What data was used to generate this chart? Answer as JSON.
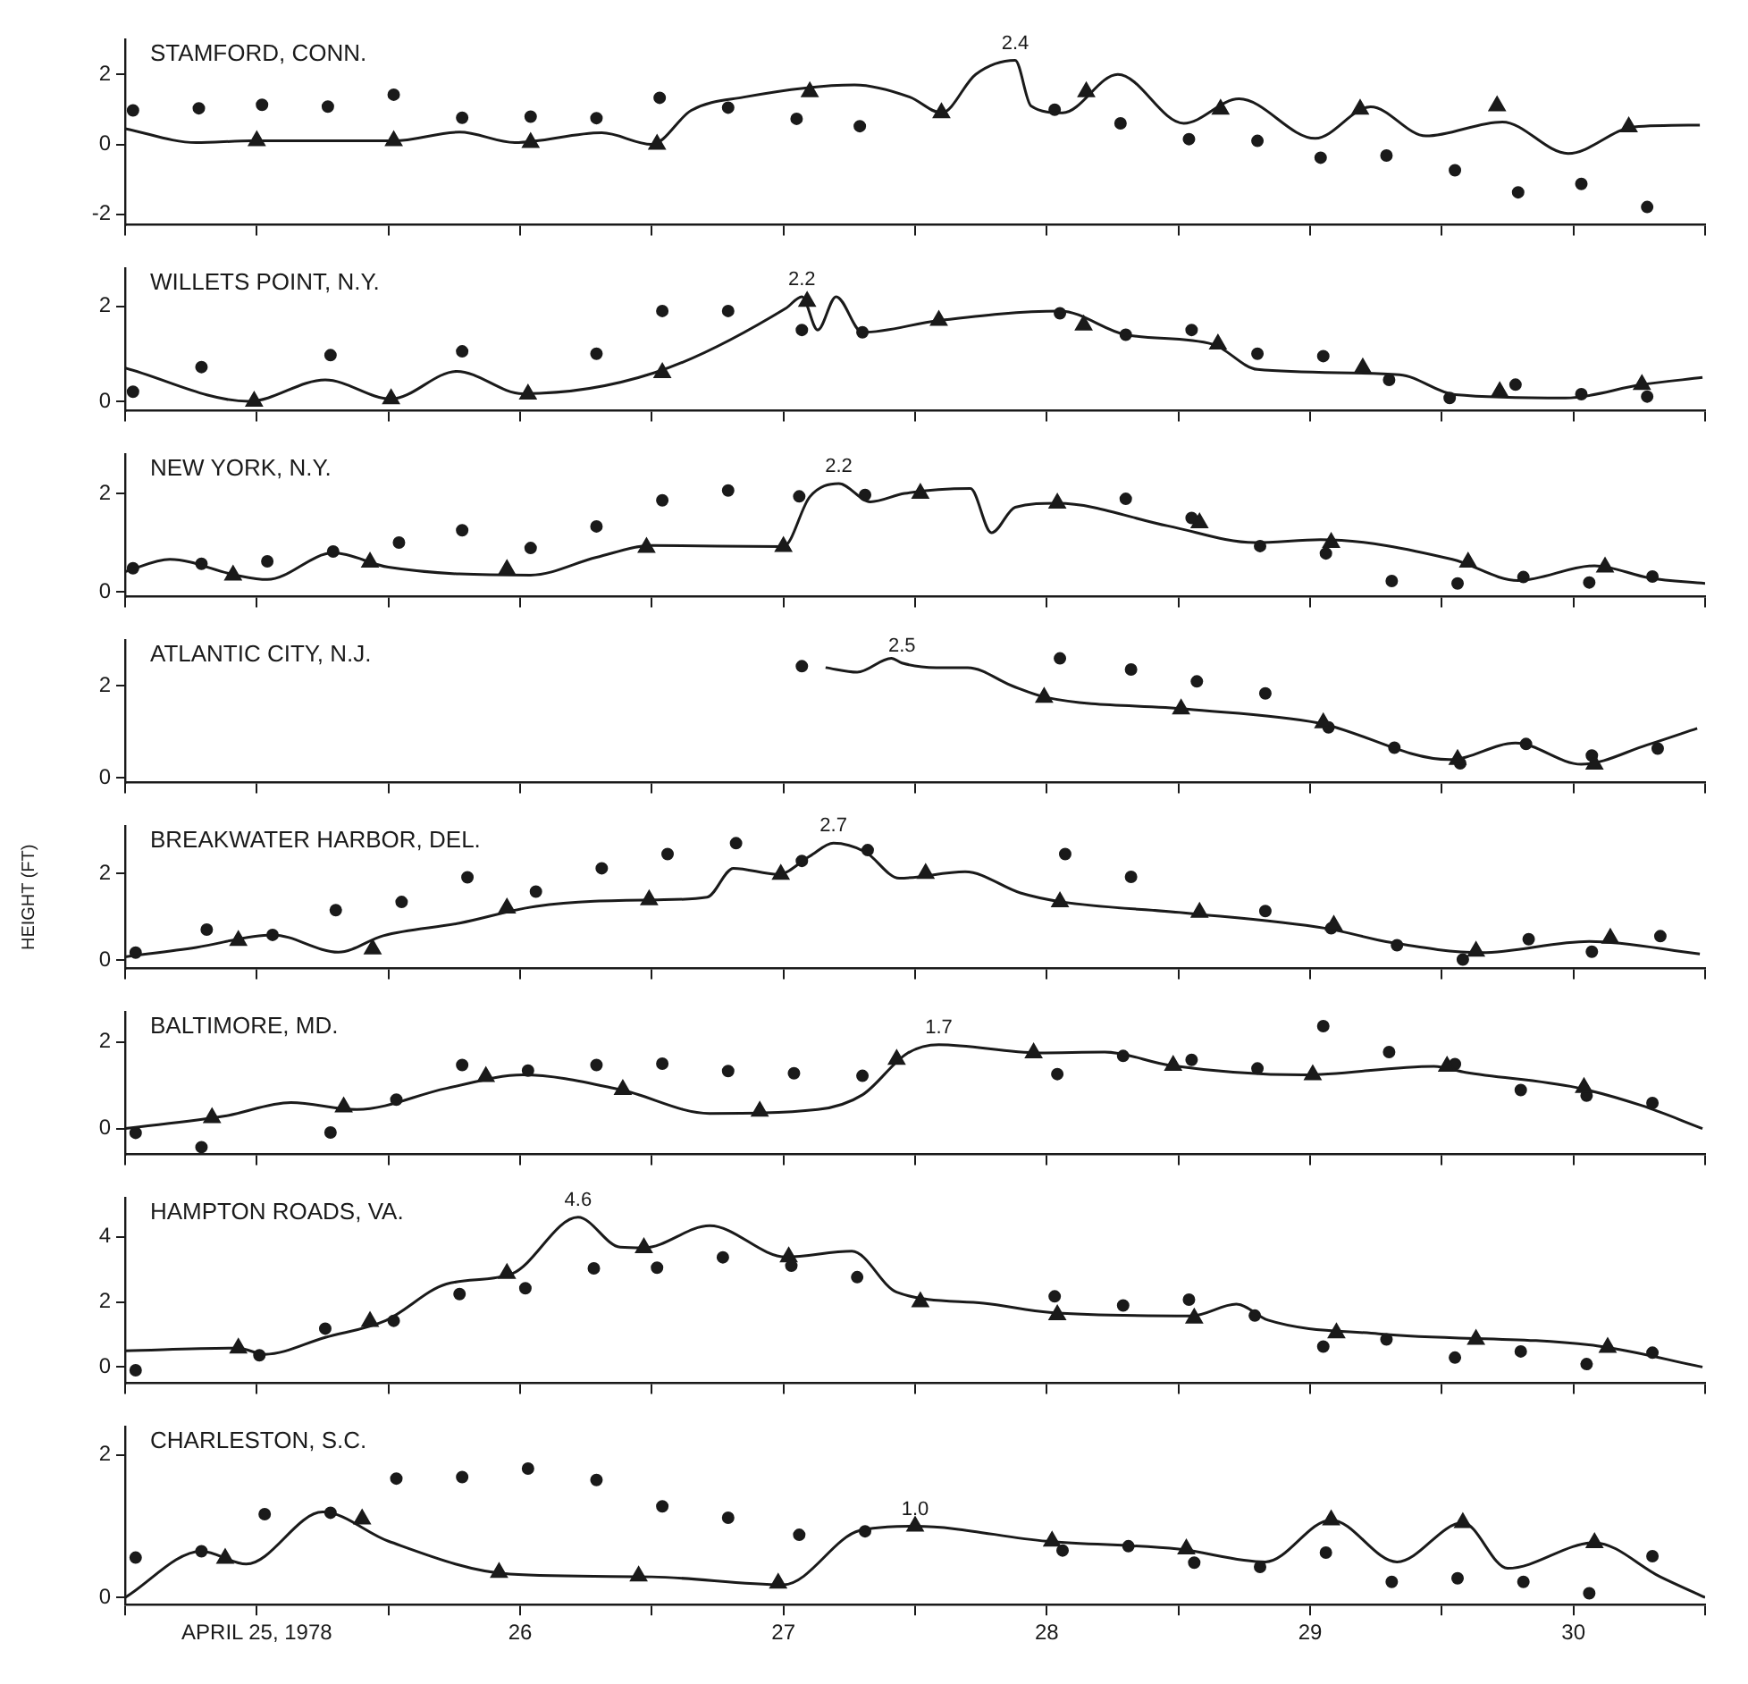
{
  "chart_data": [
    {
      "type": "line",
      "title": "STAMFORD, CONN.",
      "xlim": [
        24.5,
        30.5
      ],
      "xticks": [
        {
          "value": 24.5,
          "label": null
        },
        {
          "value": 25,
          "label": null
        },
        {
          "value": 25.5,
          "label": null
        },
        {
          "value": 26,
          "label": null
        },
        {
          "value": 26.5,
          "label": null
        },
        {
          "value": 27,
          "label": null
        },
        {
          "value": 27.5,
          "label": null
        },
        {
          "value": 28,
          "label": null
        },
        {
          "value": 28.5,
          "label": null
        },
        {
          "value": 29,
          "label": null
        },
        {
          "value": 29.5,
          "label": null
        },
        {
          "value": 30,
          "label": null
        },
        {
          "value": 30.5,
          "label": null
        }
      ],
      "ylim": [
        -2.3,
        3
      ],
      "yticks": [
        -2,
        0,
        2
      ],
      "tick_labels": "y",
      "grid": false,
      "legend": false,
      "annotations": [
        {
          "text": "2.4",
          "x": 27.88,
          "y": 2.4
        }
      ],
      "series": [
        {
          "type": "line",
          "marker": "none",
          "color": "#1a1a1a",
          "x": [
            24.5,
            24.77,
            24.98,
            25.52,
            25.77,
            25.98,
            26.31,
            26.5,
            26.65,
            26.85,
            27.27,
            27.48,
            27.6,
            27.73,
            27.88,
            27.94,
            28.06,
            28.27,
            28.52,
            28.73,
            29.02,
            29.23,
            29.44,
            29.73,
            29.98,
            30.23,
            30.48
          ],
          "values": [
            0.45,
            0.05,
            0.1,
            0.1,
            0.35,
            0.05,
            0.33,
            0.0,
            0.97,
            1.35,
            1.7,
            1.35,
            0.9,
            2.0,
            2.4,
            1.1,
            0.9,
            2.0,
            0.6,
            1.3,
            0.17,
            1.07,
            0.24,
            0.64,
            -0.26,
            0.5,
            0.55
          ]
        },
        {
          "type": "scatter",
          "marker": "circle",
          "color": "#1a1a1a",
          "x": [
            24.53,
            24.78,
            25.02,
            25.27,
            25.52,
            25.78,
            26.04,
            26.29,
            26.53,
            26.79,
            27.05,
            27.29,
            28.03,
            28.28,
            28.54,
            28.8,
            29.04,
            29.29,
            29.55,
            29.79,
            30.03,
            30.28
          ],
          "values": [
            0.97,
            1.03,
            1.13,
            1.08,
            1.42,
            0.76,
            0.79,
            0.75,
            1.33,
            1.05,
            0.73,
            0.52,
            0.99,
            0.6,
            0.15,
            0.1,
            -0.38,
            -0.32,
            -0.74,
            -1.37,
            -1.13,
            -1.79
          ]
        },
        {
          "type": "scatter",
          "marker": "triangle",
          "color": "#1a1a1a",
          "x": [
            25.0,
            25.52,
            26.04,
            26.52,
            27.1,
            27.6,
            28.15,
            28.66,
            29.19,
            29.71,
            30.21
          ],
          "values": [
            0.1,
            0.1,
            0.05,
            0.0,
            1.5,
            0.9,
            1.5,
            1.0,
            1.0,
            1.1,
            0.5
          ]
        }
      ]
    },
    {
      "type": "line",
      "title": "WILLETS POINT, N.Y.",
      "xlim": [
        24.5,
        30.5
      ],
      "xticks": [
        {
          "value": 24.5,
          "label": null
        },
        {
          "value": 25,
          "label": null
        },
        {
          "value": 25.5,
          "label": null
        },
        {
          "value": 26,
          "label": null
        },
        {
          "value": 26.5,
          "label": null
        },
        {
          "value": 27,
          "label": null
        },
        {
          "value": 27.5,
          "label": null
        },
        {
          "value": 28,
          "label": null
        },
        {
          "value": 28.5,
          "label": null
        },
        {
          "value": 29,
          "label": null
        },
        {
          "value": 29.5,
          "label": null
        },
        {
          "value": 30,
          "label": null
        },
        {
          "value": 30.5,
          "label": null
        }
      ],
      "ylim": [
        -0.2,
        2.8
      ],
      "yticks": [
        0,
        2
      ],
      "tick_labels": "y",
      "grid": false,
      "legend": false,
      "annotations": [
        {
          "text": "2.2",
          "x": 27.07,
          "y": 2.2
        }
      ],
      "series": [
        {
          "type": "line",
          "marker": "none",
          "color": "#1a1a1a",
          "x": [
            24.5,
            24.97,
            25.26,
            25.51,
            25.76,
            26.01,
            26.51,
            27.01,
            27.07,
            27.13,
            27.2,
            27.3,
            27.59,
            28.05,
            28.3,
            28.63,
            28.8,
            29.34,
            29.55,
            29.97,
            30.26,
            30.49
          ],
          "values": [
            0.7,
            0.0,
            0.45,
            0.05,
            0.63,
            0.16,
            0.6,
            1.96,
            2.2,
            1.5,
            2.2,
            1.45,
            1.7,
            1.9,
            1.4,
            1.2,
            0.67,
            0.56,
            0.14,
            0.07,
            0.35,
            0.5
          ]
        },
        {
          "type": "scatter",
          "marker": "circle",
          "color": "#1a1a1a",
          "x": [
            24.53,
            24.79,
            25.28,
            25.78,
            26.29,
            26.54,
            26.79,
            27.07,
            27.3,
            28.05,
            28.3,
            28.55,
            28.8,
            29.05,
            29.3,
            29.53,
            29.78,
            30.03,
            30.28
          ],
          "values": [
            0.2,
            0.72,
            0.97,
            1.05,
            1.0,
            1.9,
            1.9,
            1.5,
            1.45,
            1.85,
            1.4,
            1.5,
            1.0,
            0.95,
            0.45,
            0.07,
            0.35,
            0.15,
            0.1
          ]
        },
        {
          "type": "scatter",
          "marker": "triangle",
          "color": "#1a1a1a",
          "x": [
            24.99,
            25.51,
            26.03,
            26.54,
            27.09,
            27.59,
            28.14,
            28.65,
            29.2,
            29.72,
            30.26
          ],
          "values": [
            0.0,
            0.05,
            0.15,
            0.6,
            2.1,
            1.7,
            1.6,
            1.2,
            0.7,
            0.2,
            0.35
          ]
        }
      ]
    },
    {
      "type": "line",
      "title": "NEW YORK, N.Y.",
      "xlim": [
        24.5,
        30.5
      ],
      "xticks": [
        {
          "value": 24.5,
          "label": null
        },
        {
          "value": 25,
          "label": null
        },
        {
          "value": 25.5,
          "label": null
        },
        {
          "value": 26,
          "label": null
        },
        {
          "value": 26.5,
          "label": null
        },
        {
          "value": 27,
          "label": null
        },
        {
          "value": 27.5,
          "label": null
        },
        {
          "value": 28,
          "label": null
        },
        {
          "value": 28.5,
          "label": null
        },
        {
          "value": 29,
          "label": null
        },
        {
          "value": 29.5,
          "label": null
        },
        {
          "value": 30,
          "label": null
        },
        {
          "value": 30.5,
          "label": null
        }
      ],
      "ylim": [
        -0.1,
        2.8
      ],
      "yticks": [
        0,
        2
      ],
      "tick_labels": "y",
      "grid": false,
      "legend": false,
      "annotations": [
        {
          "text": "2.2",
          "x": 27.21,
          "y": 2.2
        }
      ],
      "series": [
        {
          "type": "line",
          "marker": "none",
          "color": "#1a1a1a",
          "x": [
            24.5,
            24.67,
            24.92,
            25.04,
            25.29,
            25.5,
            26.04,
            26.29,
            26.5,
            27.0,
            27.1,
            27.21,
            27.33,
            27.46,
            27.71,
            27.79,
            27.88,
            28.04,
            28.46,
            28.79,
            29.04,
            29.54,
            29.79,
            30.08,
            30.29,
            30.5
          ],
          "values": [
            0.41,
            0.66,
            0.34,
            0.25,
            0.79,
            0.5,
            0.34,
            0.7,
            0.94,
            0.92,
            1.93,
            2.2,
            1.83,
            2.0,
            2.1,
            1.2,
            1.72,
            1.8,
            1.34,
            1.0,
            1.06,
            0.66,
            0.23,
            0.53,
            0.28,
            0.17
          ]
        },
        {
          "type": "scatter",
          "marker": "circle",
          "color": "#1a1a1a",
          "x": [
            24.53,
            24.79,
            25.04,
            25.29,
            25.54,
            25.78,
            26.04,
            26.29,
            26.54,
            26.79,
            27.06,
            27.31,
            28.3,
            28.55,
            28.81,
            29.06,
            29.31,
            29.56,
            29.81,
            30.06,
            30.3
          ],
          "values": [
            0.48,
            0.57,
            0.62,
            0.82,
            1.0,
            1.25,
            0.89,
            1.33,
            1.86,
            2.06,
            1.94,
            1.97,
            1.89,
            1.5,
            0.93,
            0.78,
            0.22,
            0.17,
            0.3,
            0.19,
            0.31
          ]
        },
        {
          "type": "scatter",
          "marker": "triangle",
          "color": "#1a1a1a",
          "x": [
            24.91,
            25.43,
            25.95,
            26.48,
            27.0,
            27.52,
            28.04,
            28.58,
            29.08,
            29.6,
            30.12
          ],
          "values": [
            0.34,
            0.6,
            0.45,
            0.9,
            0.92,
            2.0,
            1.8,
            1.4,
            1.0,
            0.6,
            0.5
          ]
        }
      ]
    },
    {
      "type": "line",
      "title": "ATLANTIC CITY, N.J.",
      "xlim": [
        24.5,
        30.5
      ],
      "xticks": [
        {
          "value": 24.5,
          "label": null
        },
        {
          "value": 25,
          "label": null
        },
        {
          "value": 25.5,
          "label": null
        },
        {
          "value": 26,
          "label": null
        },
        {
          "value": 26.5,
          "label": null
        },
        {
          "value": 27,
          "label": null
        },
        {
          "value": 27.5,
          "label": null
        },
        {
          "value": 28,
          "label": null
        },
        {
          "value": 28.5,
          "label": null
        },
        {
          "value": 29,
          "label": null
        },
        {
          "value": 29.5,
          "label": null
        },
        {
          "value": 30,
          "label": null
        },
        {
          "value": 30.5,
          "label": null
        }
      ],
      "ylim": [
        -0.1,
        3.0
      ],
      "yticks": [
        0,
        2
      ],
      "tick_labels": "y",
      "grid": false,
      "legend": false,
      "annotations": [
        {
          "text": "2.5",
          "x": 27.45,
          "y": 2.5
        }
      ],
      "series": [
        {
          "type": "line",
          "marker": "none",
          "color": "#1a1a1a",
          "x": [
            27.16,
            27.28,
            27.41,
            27.45,
            27.58,
            27.7,
            27.87,
            28.0,
            28.53,
            29.03,
            29.53,
            29.78,
            30.03,
            30.28,
            30.47
          ],
          "values": [
            2.4,
            2.3,
            2.6,
            2.5,
            2.4,
            2.4,
            2.0,
            1.75,
            1.5,
            1.2,
            0.4,
            0.76,
            0.3,
            0.72,
            1.08
          ]
        },
        {
          "type": "scatter",
          "marker": "circle",
          "color": "#1a1a1a",
          "x": [
            27.07,
            28.05,
            28.32,
            28.57,
            28.83,
            29.07,
            29.32,
            29.57,
            29.82,
            30.07,
            30.32
          ],
          "values": [
            2.43,
            2.6,
            2.36,
            2.1,
            1.84,
            1.1,
            0.66,
            0.32,
            0.74,
            0.49,
            0.64
          ]
        },
        {
          "type": "scatter",
          "marker": "triangle",
          "color": "#1a1a1a",
          "x": [
            27.99,
            28.51,
            29.05,
            29.56,
            30.08
          ],
          "values": [
            1.75,
            1.5,
            1.2,
            0.4,
            0.3
          ]
        }
      ]
    },
    {
      "type": "line",
      "title": "BREAKWATER HARBOR, DEL.",
      "ylabel": "HEIGHT (FT)",
      "xlim": [
        24.5,
        30.5
      ],
      "xticks": [
        {
          "value": 24.5,
          "label": null
        },
        {
          "value": 25,
          "label": null
        },
        {
          "value": 25.5,
          "label": null
        },
        {
          "value": 26,
          "label": null
        },
        {
          "value": 26.5,
          "label": null
        },
        {
          "value": 27,
          "label": null
        },
        {
          "value": 27.5,
          "label": null
        },
        {
          "value": 28,
          "label": null
        },
        {
          "value": 28.5,
          "label": null
        },
        {
          "value": 29,
          "label": null
        },
        {
          "value": 29.5,
          "label": null
        },
        {
          "value": 30,
          "label": null
        },
        {
          "value": 30.5,
          "label": null
        }
      ],
      "ylim": [
        -0.2,
        3.1
      ],
      "yticks": [
        0,
        2
      ],
      "tick_labels": "y",
      "grid": false,
      "legend": false,
      "annotations": [
        {
          "text": "2.7",
          "x": 27.19,
          "y": 2.7
        }
      ],
      "series": [
        {
          "type": "line",
          "marker": "none",
          "color": "#1a1a1a",
          "x": [
            24.5,
            24.77,
            25.06,
            25.31,
            25.48,
            25.77,
            26.06,
            26.52,
            26.71,
            26.81,
            26.98,
            27.1,
            27.19,
            27.31,
            27.44,
            27.69,
            27.9,
            28.06,
            28.52,
            29.06,
            29.31,
            29.65,
            30.06,
            30.48
          ],
          "values": [
            0.07,
            0.29,
            0.58,
            0.18,
            0.56,
            0.85,
            1.24,
            1.39,
            1.45,
            2.12,
            1.98,
            2.4,
            2.7,
            2.5,
            1.89,
            2.04,
            1.55,
            1.34,
            1.09,
            0.73,
            0.4,
            0.17,
            0.43,
            0.14
          ]
        },
        {
          "type": "scatter",
          "marker": "circle",
          "color": "#1a1a1a",
          "x": [
            24.54,
            24.81,
            25.06,
            25.3,
            25.55,
            25.8,
            26.06,
            26.31,
            26.56,
            26.82,
            27.07,
            27.32,
            28.07,
            28.32,
            28.83,
            29.08,
            29.33,
            29.58,
            29.83,
            30.07,
            30.33
          ],
          "values": [
            0.17,
            0.7,
            0.58,
            1.15,
            1.34,
            1.91,
            1.58,
            2.12,
            2.45,
            2.7,
            2.29,
            2.54,
            2.45,
            1.92,
            1.13,
            0.73,
            0.34,
            0.01,
            0.48,
            0.19,
            0.55
          ]
        },
        {
          "type": "scatter",
          "marker": "triangle",
          "color": "#1a1a1a",
          "x": [
            24.93,
            25.44,
            25.95,
            26.49,
            26.99,
            27.54,
            28.05,
            28.58,
            29.09,
            29.63,
            30.14
          ],
          "values": [
            0.45,
            0.25,
            1.2,
            1.39,
            1.98,
            2.0,
            1.34,
            1.1,
            0.8,
            0.2,
            0.5
          ]
        }
      ]
    },
    {
      "type": "line",
      "title": "BALTIMORE, MD.",
      "xlim": [
        24.5,
        30.5
      ],
      "xticks": [
        {
          "value": 24.5,
          "label": null
        },
        {
          "value": 25,
          "label": null
        },
        {
          "value": 25.5,
          "label": null
        },
        {
          "value": 26,
          "label": null
        },
        {
          "value": 26.5,
          "label": null
        },
        {
          "value": 27,
          "label": null
        },
        {
          "value": 27.5,
          "label": null
        },
        {
          "value": 28,
          "label": null
        },
        {
          "value": 28.5,
          "label": null
        },
        {
          "value": 29,
          "label": null
        },
        {
          "value": 29.5,
          "label": null
        },
        {
          "value": 30,
          "label": null
        },
        {
          "value": 30.5,
          "label": null
        }
      ],
      "ylim": [
        -0.6,
        2.7
      ],
      "yticks": [
        0,
        2
      ],
      "tick_labels": "y",
      "grid": false,
      "legend": false,
      "annotations": [
        {
          "text": "1.7",
          "x": 27.59,
          "y": 1.94
        }
      ],
      "series": [
        {
          "type": "line",
          "marker": "none",
          "color": "#1a1a1a",
          "x": [
            24.5,
            24.88,
            25.13,
            25.38,
            25.72,
            26.01,
            26.38,
            26.72,
            27.13,
            27.3,
            27.47,
            27.59,
            27.97,
            28.22,
            28.47,
            28.97,
            29.47,
            29.59,
            30.01,
            30.26,
            30.49
          ],
          "values": [
            0.0,
            0.29,
            0.6,
            0.44,
            0.93,
            1.24,
            0.9,
            0.35,
            0.44,
            0.78,
            1.74,
            1.94,
            1.75,
            1.77,
            1.46,
            1.24,
            1.44,
            1.3,
            0.95,
            0.53,
            0.0
          ]
        },
        {
          "type": "scatter",
          "marker": "circle",
          "color": "#1a1a1a",
          "x": [
            24.54,
            24.79,
            25.28,
            25.53,
            25.78,
            26.03,
            26.29,
            26.54,
            26.79,
            27.04,
            27.3,
            28.04,
            28.29,
            28.55,
            28.8,
            29.05,
            29.3,
            29.55,
            29.8,
            30.05,
            30.3
          ],
          "values": [
            -0.1,
            -0.43,
            -0.09,
            0.67,
            1.47,
            1.34,
            1.47,
            1.5,
            1.33,
            1.28,
            1.22,
            1.26,
            1.68,
            1.59,
            1.39,
            2.37,
            1.77,
            1.49,
            0.89,
            0.76,
            0.59
          ]
        },
        {
          "type": "scatter",
          "marker": "triangle",
          "color": "#1a1a1a",
          "x": [
            24.83,
            25.33,
            25.87,
            26.39,
            26.91,
            27.43,
            27.95,
            28.48,
            29.01,
            29.52,
            30.04
          ],
          "values": [
            0.25,
            0.5,
            1.2,
            0.9,
            0.4,
            1.6,
            1.75,
            1.46,
            1.24,
            1.44,
            0.95
          ]
        }
      ]
    },
    {
      "type": "line",
      "title": "HAMPTON ROADS, VA.",
      "xlim": [
        24.5,
        30.5
      ],
      "xticks": [
        {
          "value": 24.5,
          "label": null
        },
        {
          "value": 25,
          "label": null
        },
        {
          "value": 25.5,
          "label": null
        },
        {
          "value": 26,
          "label": null
        },
        {
          "value": 26.5,
          "label": null
        },
        {
          "value": 27,
          "label": null
        },
        {
          "value": 27.5,
          "label": null
        },
        {
          "value": 28,
          "label": null
        },
        {
          "value": 28.5,
          "label": null
        },
        {
          "value": 29,
          "label": null
        },
        {
          "value": 29.5,
          "label": null
        },
        {
          "value": 30,
          "label": null
        },
        {
          "value": 30.5,
          "label": null
        }
      ],
      "ylim": [
        -0.5,
        5.2
      ],
      "yticks": [
        0,
        2,
        4
      ],
      "tick_labels": "y",
      "grid": false,
      "legend": false,
      "annotations": [
        {
          "text": "4.6",
          "x": 26.22,
          "y": 4.6
        }
      ],
      "series": [
        {
          "type": "line",
          "marker": "none",
          "color": "#1a1a1a",
          "x": [
            24.5,
            24.93,
            25.03,
            25.26,
            25.49,
            25.72,
            25.97,
            26.22,
            26.38,
            26.47,
            26.72,
            27.01,
            27.26,
            27.43,
            27.76,
            28.01,
            28.55,
            28.72,
            28.84,
            29.26,
            30.09,
            30.49
          ],
          "values": [
            0.5,
            0.58,
            0.39,
            0.91,
            1.43,
            2.55,
            2.87,
            4.6,
            3.68,
            3.66,
            4.34,
            3.38,
            3.56,
            2.3,
            1.96,
            1.68,
            1.57,
            1.93,
            1.44,
            1.02,
            0.65,
            0.0
          ]
        },
        {
          "type": "scatter",
          "marker": "circle",
          "color": "#1a1a1a",
          "x": [
            24.54,
            25.01,
            25.26,
            25.52,
            25.77,
            26.02,
            26.28,
            26.52,
            26.77,
            27.03,
            27.28,
            28.03,
            28.29,
            28.54,
            28.79,
            29.05,
            29.29,
            29.55,
            29.8,
            30.05,
            30.3
          ],
          "values": [
            -0.1,
            0.36,
            1.18,
            1.42,
            2.24,
            2.42,
            3.03,
            3.05,
            3.37,
            3.11,
            2.76,
            2.17,
            1.89,
            2.07,
            1.58,
            0.63,
            0.85,
            0.29,
            0.48,
            0.09,
            0.44
          ]
        },
        {
          "type": "scatter",
          "marker": "triangle",
          "color": "#1a1a1a",
          "x": [
            24.93,
            25.43,
            25.95,
            26.47,
            27.02,
            27.52,
            28.04,
            28.56,
            29.1,
            29.63,
            30.13
          ],
          "values": [
            0.58,
            1.4,
            2.87,
            3.66,
            3.38,
            2.0,
            1.6,
            1.5,
            1.05,
            0.85,
            0.6
          ]
        }
      ]
    },
    {
      "type": "line",
      "title": "CHARLESTON, S.C.",
      "xlim": [
        24.5,
        30.5
      ],
      "xticks": [
        {
          "value": 24.5,
          "label": null
        },
        {
          "value": 25,
          "label": "APRIL 25, 1978"
        },
        {
          "value": 25.5,
          "label": null
        },
        26,
        {
          "value": 26.5,
          "label": null
        },
        27,
        {
          "value": 27.5,
          "label": null
        },
        28,
        {
          "value": 28.5,
          "label": null
        },
        29,
        {
          "value": 29.5,
          "label": null
        },
        30,
        {
          "value": 30.5,
          "label": null
        }
      ],
      "ylim": [
        -0.1,
        2.4
      ],
      "yticks": [
        0,
        2
      ],
      "grid": false,
      "legend": false,
      "annotations": [
        {
          "text": "1.0",
          "x": 27.5,
          "y": 1.0
        }
      ],
      "series": [
        {
          "type": "line",
          "marker": "none",
          "color": "#1a1a1a",
          "x": [
            24.5,
            24.79,
            24.96,
            25.25,
            25.5,
            25.96,
            26.5,
            27.0,
            27.29,
            27.5,
            28.0,
            28.5,
            28.83,
            29.08,
            29.33,
            29.58,
            29.75,
            30.08,
            30.33,
            30.5
          ],
          "values": [
            0.0,
            0.65,
            0.47,
            1.2,
            0.79,
            0.33,
            0.29,
            0.18,
            0.94,
            1.0,
            0.79,
            0.68,
            0.5,
            1.09,
            0.5,
            1.05,
            0.41,
            0.77,
            0.29,
            0.0
          ]
        },
        {
          "type": "scatter",
          "marker": "circle",
          "color": "#1a1a1a",
          "x": [
            24.54,
            24.79,
            25.03,
            25.28,
            25.53,
            25.78,
            26.03,
            26.29,
            26.54,
            26.79,
            27.06,
            27.31,
            28.06,
            28.31,
            28.56,
            28.81,
            29.06,
            29.31,
            29.56,
            29.81,
            30.06,
            30.3
          ],
          "values": [
            0.56,
            0.65,
            1.17,
            1.19,
            1.67,
            1.69,
            1.81,
            1.65,
            1.28,
            1.12,
            0.88,
            0.93,
            0.66,
            0.72,
            0.49,
            0.43,
            0.63,
            0.22,
            0.27,
            0.22,
            0.06,
            0.58
          ]
        },
        {
          "type": "scatter",
          "marker": "triangle",
          "color": "#1a1a1a",
          "x": [
            24.88,
            25.4,
            25.92,
            26.45,
            26.98,
            27.5,
            28.02,
            28.53,
            29.08,
            29.58,
            30.08
          ],
          "values": [
            0.55,
            1.1,
            0.35,
            0.3,
            0.2,
            1.0,
            0.79,
            0.68,
            1.09,
            1.05,
            0.77
          ]
        }
      ]
    }
  ]
}
